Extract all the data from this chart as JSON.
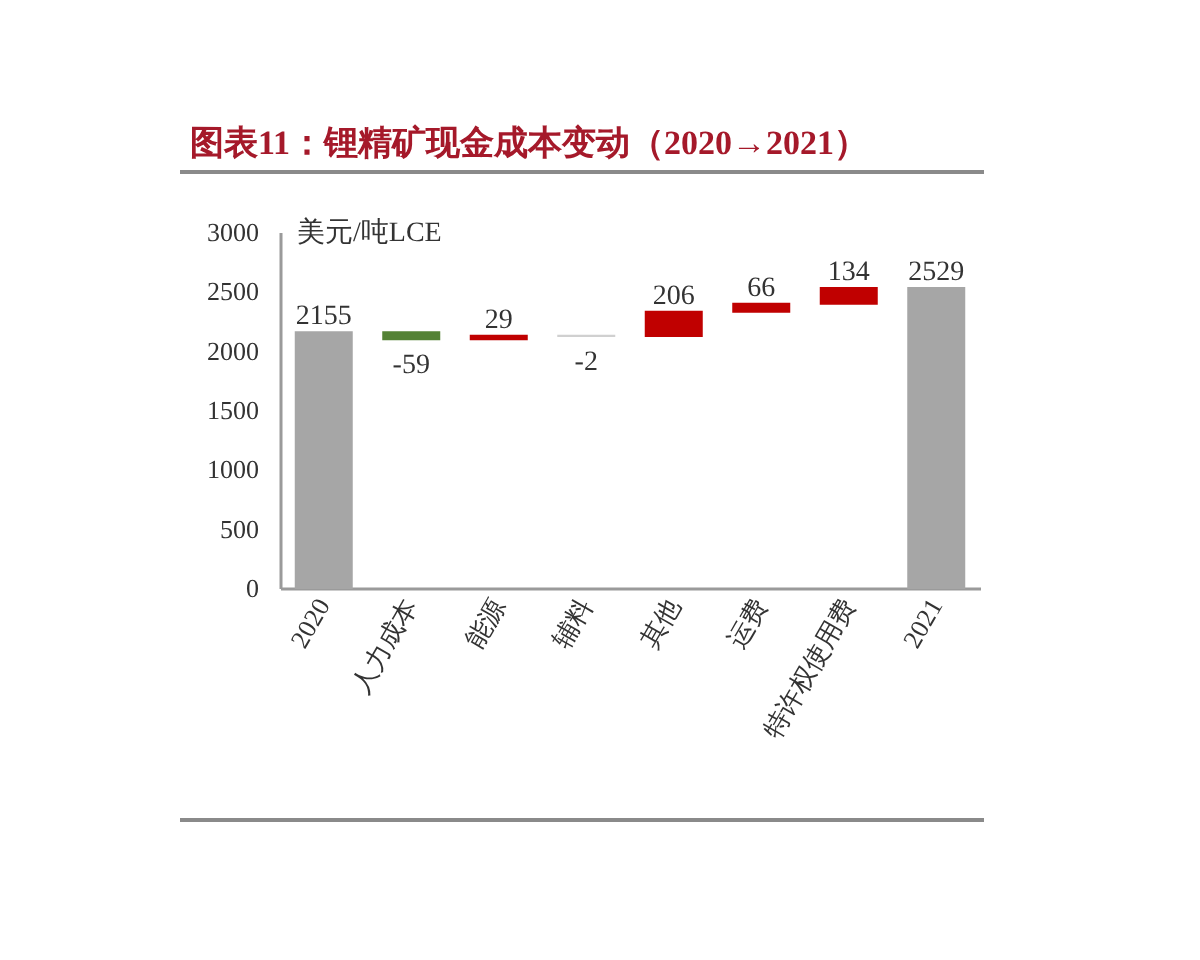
{
  "chart_data": {
    "type": "bar",
    "title": "图表11：锂精矿现金成本变动（2020→2021）",
    "ylabel": "美元/吨LCE",
    "categories": [
      "2020",
      "人力成本",
      "能源",
      "辅料",
      "其他",
      "运费",
      "特许权使用费",
      "2021"
    ],
    "values": [
      2155,
      -59,
      29,
      -2,
      206,
      66,
      134,
      2529
    ],
    "base": [
      0,
      2155,
      2096,
      2125,
      2123,
      2329,
      2395,
      0
    ],
    "colors": [
      "#a6a6a6",
      "#548235",
      "#c00000",
      "#d0d0d0",
      "#c00000",
      "#c00000",
      "#c00000",
      "#a6a6a6"
    ],
    "ylim": [
      0,
      3000
    ],
    "yticks": [
      0,
      500,
      1000,
      1500,
      2000,
      2500,
      3000
    ],
    "data_labels": true,
    "grid": false
  }
}
